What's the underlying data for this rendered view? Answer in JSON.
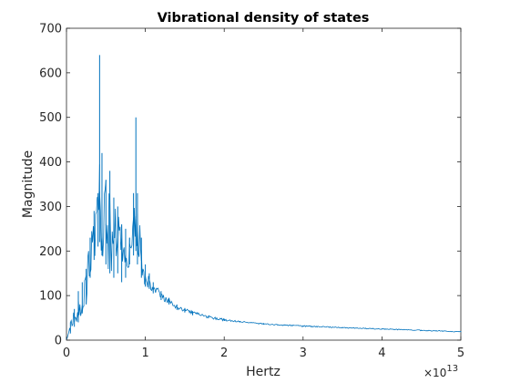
{
  "chart_data": {
    "type": "line",
    "title": "Vibrational density of states",
    "xlabel": "Hertz",
    "ylabel": "Magnitude",
    "x_multiplier": "×10",
    "x_exponent": "13",
    "xlim": [
      0,
      5
    ],
    "ylim": [
      0,
      700
    ],
    "xticks": [
      "0",
      "1",
      "2",
      "3",
      "4",
      "5"
    ],
    "yticks": [
      "0",
      "100",
      "200",
      "300",
      "400",
      "500",
      "600",
      "700"
    ],
    "grid": false,
    "series_color": "#0072BD",
    "series": [
      {
        "x": [
          0.0,
          0.05,
          0.1,
          0.15,
          0.2,
          0.25,
          0.3,
          0.35,
          0.4,
          0.42,
          0.45,
          0.5,
          0.55,
          0.6,
          0.65,
          0.7,
          0.75,
          0.8,
          0.85,
          0.88,
          0.9,
          0.95,
          1.0,
          1.05,
          1.1,
          1.2,
          1.3,
          1.4,
          1.5,
          1.6,
          1.8,
          2.0,
          2.2,
          2.5,
          3.0,
          3.5,
          4.0,
          4.5,
          5.0
        ],
        "y": [
          5,
          40,
          70,
          110,
          130,
          160,
          230,
          290,
          330,
          640,
          420,
          360,
          380,
          320,
          300,
          260,
          250,
          230,
          330,
          500,
          330,
          230,
          170,
          150,
          130,
          110,
          95,
          80,
          72,
          65,
          55,
          48,
          43,
          38,
          33,
          29,
          26,
          23,
          20
        ],
        "min": [
          0,
          15,
          30,
          40,
          60,
          80,
          140,
          180,
          210,
          220,
          190,
          170,
          150,
          140,
          150,
          130,
          140,
          170,
          190,
          200,
          170,
          140,
          120,
          115,
          105,
          90,
          80,
          68,
          62,
          56,
          49,
          43,
          40,
          35,
          30,
          27,
          24,
          21,
          18
        ]
      }
    ]
  }
}
